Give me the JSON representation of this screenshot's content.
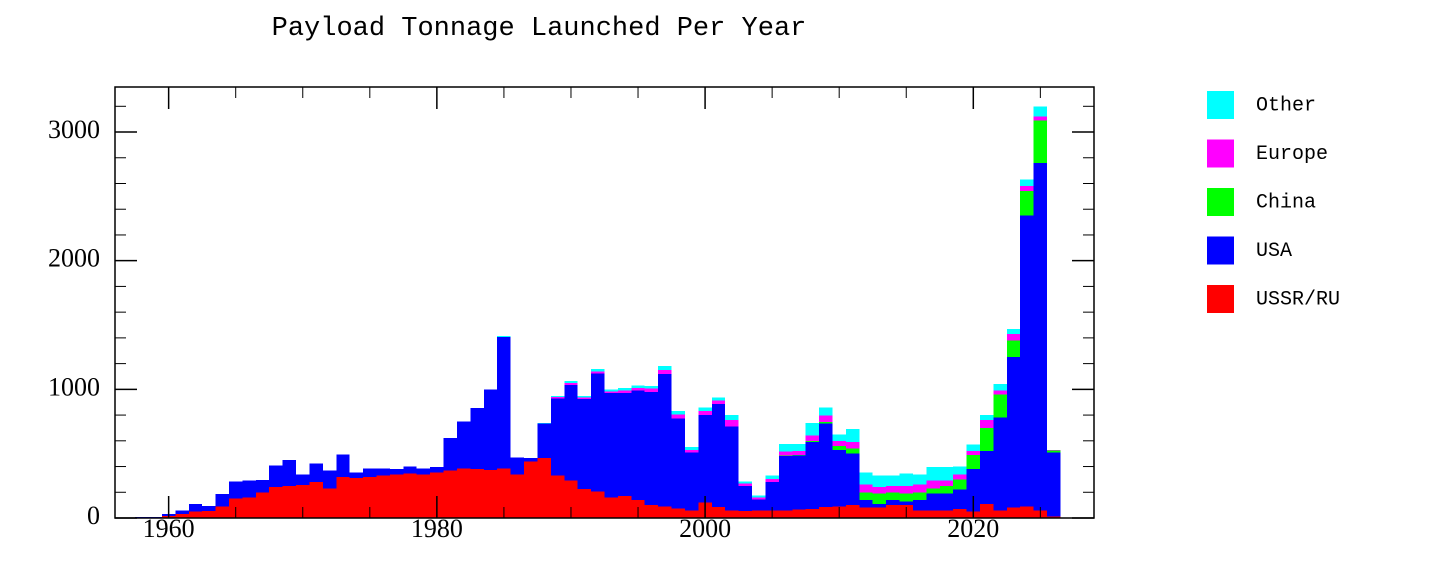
{
  "chart_data": {
    "type": "histogram",
    "title": "Payload Tonnage Launched Per Year",
    "stacked": true,
    "bins": [
      1956.5,
      1957.5,
      1958.5,
      1959.5,
      1960.5,
      1961.5,
      1962.5,
      1963.5,
      1964.5,
      1965.5,
      1966.5,
      1967.5,
      1968.5,
      1969.5,
      1970.5,
      1971.5,
      1972.5,
      1973.5,
      1974.5,
      1975.5,
      1976.5,
      1977.5,
      1978.5,
      1979.5,
      1980.5,
      1981.5,
      1982.5,
      1983.5,
      1984.5,
      1985.5,
      1986.5,
      1987.5,
      1988.5,
      1989.5,
      1990.5,
      1991.5,
      1992.5,
      1993.5,
      1994.5,
      1995.5,
      1996.5,
      1997.5,
      1998.5,
      1999.5,
      2000.5,
      2001.5,
      2002.5,
      2003.5,
      2004.5,
      2005.5,
      2006.5,
      2007.5,
      2008.5,
      2009.5,
      2010.5,
      2011.5,
      2012.5,
      2013.5,
      2014.5,
      2015.5,
      2016.5,
      2017.5,
      2018.5,
      2019.5,
      2020.5,
      2021.5,
      2022.5,
      2023.5,
      2024.5,
      2025.5,
      2026.5
    ],
    "series": [
      {
        "name": "USSR/RU",
        "color": "#ff0000",
        "values": [
          5,
          5,
          5,
          15,
          30,
          50,
          55,
          90,
          150,
          160,
          200,
          240,
          250,
          255,
          280,
          230,
          320,
          310,
          320,
          330,
          340,
          345,
          340,
          355,
          370,
          385,
          380,
          375,
          385,
          340,
          440,
          465,
          330,
          290,
          225,
          205,
          160,
          170,
          140,
          100,
          90,
          75,
          60,
          120,
          85,
          60,
          55,
          60,
          60,
          60,
          65,
          70,
          85,
          90,
          100,
          80,
          80,
          100,
          100,
          60,
          60,
          60,
          70,
          50,
          110,
          60,
          80,
          90,
          60,
          10
        ]
      },
      {
        "name": "USA",
        "color": "#0000ff",
        "values": [
          0,
          2,
          3,
          15,
          30,
          60,
          40,
          95,
          135,
          130,
          95,
          170,
          200,
          85,
          145,
          140,
          175,
          45,
          65,
          55,
          40,
          55,
          45,
          40,
          250,
          365,
          475,
          625,
          1020,
          130,
          25,
          270,
          600,
          745,
          700,
          920,
          810,
          800,
          850,
          880,
          1030,
          700,
          450,
          680,
          800,
          650,
          195,
          85,
          220,
          420,
          420,
          520,
          650,
          440,
          400,
          60,
          30,
          40,
          30,
          80,
          130,
          130,
          150,
          330,
          410,
          720,
          1170,
          2260,
          2700,
          500
        ]
      },
      {
        "name": "China",
        "color": "#00ff00",
        "values": [
          0,
          0,
          0,
          0,
          0,
          0,
          0,
          0,
          0,
          0,
          0,
          0,
          0,
          0,
          0,
          0,
          0,
          0,
          0,
          0,
          0,
          0,
          0,
          0,
          0,
          0,
          0,
          0,
          0,
          0,
          0,
          0,
          0,
          0,
          0,
          0,
          0,
          0,
          0,
          0,
          0,
          0,
          0,
          0,
          0,
          0,
          0,
          0,
          0,
          5,
          5,
          10,
          10,
          30,
          40,
          60,
          80,
          60,
          60,
          60,
          40,
          60,
          80,
          110,
          180,
          180,
          130,
          190,
          330,
          15
        ]
      },
      {
        "name": "Europe",
        "color": "#ff00ff",
        "values": [
          0,
          0,
          0,
          0,
          0,
          0,
          0,
          0,
          0,
          0,
          0,
          0,
          0,
          0,
          0,
          0,
          0,
          0,
          0,
          0,
          0,
          0,
          0,
          0,
          0,
          0,
          0,
          0,
          0,
          0,
          0,
          0,
          10,
          15,
          12,
          15,
          15,
          20,
          20,
          25,
          30,
          30,
          20,
          30,
          30,
          50,
          20,
          15,
          25,
          30,
          30,
          40,
          50,
          40,
          50,
          60,
          50,
          50,
          60,
          60,
          60,
          40,
          40,
          30,
          60,
          30,
          50,
          40,
          30,
          5
        ]
      },
      {
        "name": "Other",
        "color": "#00ffff",
        "values": [
          0,
          0,
          0,
          0,
          0,
          0,
          0,
          0,
          0,
          0,
          0,
          0,
          0,
          0,
          0,
          0,
          0,
          0,
          0,
          0,
          0,
          0,
          0,
          0,
          0,
          0,
          0,
          0,
          10,
          0,
          0,
          5,
          10,
          15,
          13,
          20,
          15,
          20,
          20,
          20,
          30,
          25,
          20,
          30,
          20,
          40,
          15,
          15,
          25,
          60,
          55,
          100,
          65,
          50,
          100,
          95,
          90,
          80,
          95,
          80,
          105,
          105,
          60,
          50,
          40,
          50,
          40,
          50,
          80,
          0
        ]
      }
    ],
    "xlim": [
      1956,
      2029
    ],
    "xticks": [
      1960,
      1980,
      2000,
      2020
    ],
    "xminorticks": [
      1965,
      1970,
      1975,
      1985,
      1990,
      1995,
      2005,
      2010,
      2015,
      2025
    ],
    "ylim": [
      0,
      3350
    ],
    "yticks": [
      0,
      1000,
      2000,
      3000
    ],
    "yminorticks": [
      200,
      400,
      600,
      800,
      1200,
      1400,
      1600,
      1800,
      2200,
      2400,
      2600,
      2800,
      3200
    ],
    "legend": "right"
  }
}
